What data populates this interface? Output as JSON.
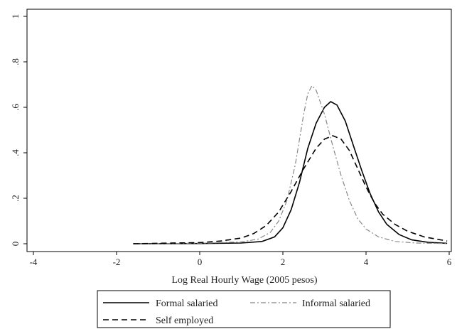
{
  "chart_data": {
    "type": "line",
    "title": "",
    "xlabel": "Log Real Hourly Wage (2005 pesos)",
    "ylabel": "",
    "xlim": [
      -4.2,
      6
    ],
    "ylim": [
      0,
      1
    ],
    "x_ticks": [
      {
        "value": -4,
        "label": "-4"
      },
      {
        "value": -2,
        "label": "-2"
      },
      {
        "value": 0,
        "label": "0"
      },
      {
        "value": 2,
        "label": "2"
      },
      {
        "value": 4,
        "label": "4"
      },
      {
        "value": 6,
        "label": "6"
      }
    ],
    "y_ticks": [
      {
        "value": 0,
        "label": "0"
      },
      {
        "value": 0.2,
        "label": ".2"
      },
      {
        "value": 0.4,
        "label": ".4"
      },
      {
        "value": 0.6,
        "label": ".6"
      },
      {
        "value": 0.8,
        "label": ".8"
      },
      {
        "value": 1,
        "label": "1"
      }
    ],
    "grid": false,
    "legend_position": "bottom",
    "series": [
      {
        "name": "Formal salaried",
        "color": "#000000",
        "dash": "solid",
        "points": [
          [
            -1.6,
            0
          ],
          [
            0,
            0.001
          ],
          [
            1,
            0.003
          ],
          [
            1.5,
            0.01
          ],
          [
            1.8,
            0.03
          ],
          [
            2.0,
            0.07
          ],
          [
            2.2,
            0.15
          ],
          [
            2.4,
            0.27
          ],
          [
            2.6,
            0.42
          ],
          [
            2.8,
            0.53
          ],
          [
            3.0,
            0.6
          ],
          [
            3.15,
            0.625
          ],
          [
            3.3,
            0.61
          ],
          [
            3.5,
            0.54
          ],
          [
            3.7,
            0.43
          ],
          [
            3.9,
            0.32
          ],
          [
            4.1,
            0.22
          ],
          [
            4.3,
            0.14
          ],
          [
            4.5,
            0.085
          ],
          [
            4.8,
            0.04
          ],
          [
            5.1,
            0.017
          ],
          [
            5.5,
            0.006
          ],
          [
            5.95,
            0.002
          ]
        ]
      },
      {
        "name": "Informal salaried",
        "color": "#888888",
        "dash": "dashdot",
        "points": [
          [
            -1.6,
            0
          ],
          [
            0,
            0.002
          ],
          [
            1.0,
            0.008
          ],
          [
            1.4,
            0.02
          ],
          [
            1.7,
            0.05
          ],
          [
            1.9,
            0.1
          ],
          [
            2.1,
            0.19
          ],
          [
            2.3,
            0.35
          ],
          [
            2.5,
            0.57
          ],
          [
            2.6,
            0.66
          ],
          [
            2.7,
            0.695
          ],
          [
            2.8,
            0.675
          ],
          [
            3.0,
            0.57
          ],
          [
            3.2,
            0.43
          ],
          [
            3.4,
            0.3
          ],
          [
            3.6,
            0.19
          ],
          [
            3.8,
            0.11
          ],
          [
            4.0,
            0.065
          ],
          [
            4.3,
            0.03
          ],
          [
            4.7,
            0.01
          ],
          [
            5.2,
            0.003
          ],
          [
            5.95,
            0.001
          ]
        ]
      },
      {
        "name": "Self employed",
        "color": "#000000",
        "dash": "dashed",
        "points": [
          [
            -1.6,
            0
          ],
          [
            0,
            0.005
          ],
          [
            0.5,
            0.012
          ],
          [
            1.0,
            0.025
          ],
          [
            1.3,
            0.045
          ],
          [
            1.6,
            0.08
          ],
          [
            1.9,
            0.14
          ],
          [
            2.2,
            0.23
          ],
          [
            2.5,
            0.33
          ],
          [
            2.8,
            0.42
          ],
          [
            3.0,
            0.46
          ],
          [
            3.2,
            0.475
          ],
          [
            3.4,
            0.46
          ],
          [
            3.6,
            0.41
          ],
          [
            3.8,
            0.33
          ],
          [
            4.0,
            0.25
          ],
          [
            4.2,
            0.18
          ],
          [
            4.4,
            0.13
          ],
          [
            4.7,
            0.085
          ],
          [
            5.0,
            0.055
          ],
          [
            5.4,
            0.03
          ],
          [
            5.95,
            0.012
          ]
        ]
      }
    ]
  },
  "legend": {
    "items": [
      {
        "label": "Formal salaried",
        "dash": "solid"
      },
      {
        "label": "Informal salaried",
        "dash": "dashdot"
      },
      {
        "label": "Self employed",
        "dash": "dashed"
      }
    ]
  }
}
